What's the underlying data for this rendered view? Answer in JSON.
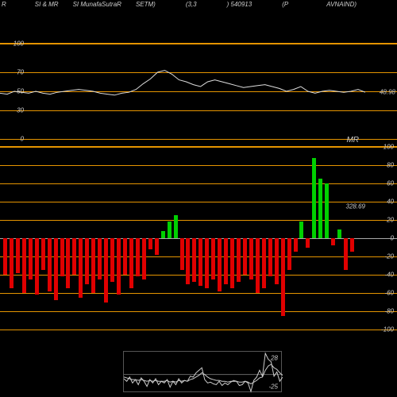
{
  "header": {
    "items": [
      "R",
      "SI & MR",
      "SI MunafaSutraR",
      "SETM)",
      "(3,3",
      ") 540913",
      "(P",
      "AVNAIND)"
    ]
  },
  "colors": {
    "bg": "#000000",
    "grid": "#e59400",
    "line": "#dddddd",
    "pos": "#00d000",
    "neg": "#e00000",
    "text": "#cccccc"
  },
  "rsi": {
    "ylim": [
      0,
      100
    ],
    "yticks": [
      0,
      30,
      50,
      70,
      100
    ],
    "current_label": "48.98",
    "line_values": [
      48,
      47,
      50,
      49,
      48,
      50,
      48,
      47,
      49,
      50,
      51,
      52,
      51,
      50,
      48,
      47,
      46,
      48,
      49,
      52,
      58,
      63,
      70,
      72,
      68,
      62,
      60,
      57,
      55,
      60,
      62,
      60,
      58,
      56,
      54,
      55,
      56,
      57,
      55,
      53,
      50,
      52,
      55,
      50,
      48,
      50,
      51,
      50,
      49,
      50,
      52,
      49
    ]
  },
  "mr": {
    "title": "MR",
    "ylim": [
      -100,
      100
    ],
    "yticks": [
      -100,
      -80,
      -60,
      -40,
      -20,
      0,
      20,
      40,
      60,
      80,
      100
    ],
    "current_labels": [
      "328.69"
    ],
    "values": [
      -40,
      -55,
      -38,
      -60,
      -45,
      -62,
      -35,
      -58,
      -68,
      -42,
      -55,
      -40,
      -65,
      -50,
      -60,
      -45,
      -70,
      -48,
      -62,
      -40,
      -55,
      -42,
      -45,
      -12,
      -18,
      8,
      18,
      25,
      -35,
      -50,
      -48,
      -52,
      -55,
      -45,
      -58,
      -50,
      -55,
      -48,
      -40,
      -45,
      -60,
      -55,
      -42,
      -50,
      -85,
      -35,
      -15,
      18,
      -10,
      88,
      65,
      60,
      -8,
      10,
      -35,
      -15
    ]
  },
  "macd": {
    "ytick_labels": [
      "-25",
      "28"
    ],
    "line_values": [
      -5,
      -8,
      -3,
      -10,
      -6,
      -12,
      -4,
      -8,
      -14,
      -6,
      -10,
      -5,
      -12,
      -8,
      -10,
      -6,
      -15,
      -8,
      -12,
      -5,
      -10,
      -7,
      -8,
      -2,
      -3,
      2,
      5,
      8,
      -6,
      -10,
      -9,
      -11,
      -12,
      -8,
      -13,
      -10,
      -12,
      -9,
      -7,
      -8,
      -13,
      -12,
      -8,
      -10,
      -20,
      -7,
      -3,
      5,
      -2,
      25,
      18,
      15,
      -2,
      3,
      -8,
      -3
    ],
    "ref_values": [
      -3,
      -4,
      -5,
      -6,
      -6,
      -7,
      -6,
      -7,
      -8,
      -7,
      -8,
      -7,
      -8,
      -8,
      -8,
      -7,
      -9,
      -8,
      -9,
      -7,
      -8,
      -7,
      -8,
      -6,
      -5,
      -3,
      -1,
      2,
      0,
      -3,
      -5,
      -6,
      -7,
      -7,
      -8,
      -8,
      -9,
      -8,
      -8,
      -8,
      -9,
      -9,
      -8,
      -9,
      -11,
      -9,
      -7,
      -4,
      -3,
      5,
      10,
      12,
      8,
      6,
      2,
      -1
    ]
  }
}
